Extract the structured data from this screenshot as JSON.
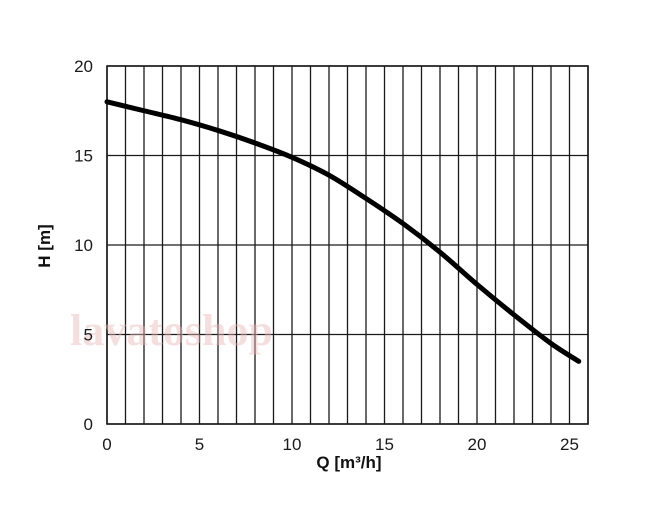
{
  "chart_data": {
    "type": "line",
    "title": "",
    "xlabel": "Q [m³/h]",
    "ylabel": "H [m]",
    "xlim": [
      0,
      26
    ],
    "ylim": [
      0,
      20
    ],
    "x_ticks": [
      0,
      5,
      10,
      15,
      20,
      25
    ],
    "y_ticks": [
      0,
      5,
      10,
      15,
      20
    ],
    "x_gridlines_every": 1,
    "y_gridlines_every": 5,
    "grid": true,
    "legend": "none",
    "series": [
      {
        "color": "#000000",
        "x": [
          0,
          2,
          4,
          6,
          8,
          10,
          12,
          14,
          16,
          18,
          20,
          22,
          24,
          25.5
        ],
        "y": [
          18.0,
          17.5,
          17.0,
          16.4,
          15.7,
          14.9,
          13.9,
          12.6,
          11.2,
          9.6,
          7.8,
          6.1,
          4.5,
          3.5
        ]
      }
    ]
  },
  "watermark": "lavatoshop",
  "colors": {
    "grid": "#1a1a1a",
    "curve": "#000000",
    "watermark": "#e8b8b8"
  }
}
